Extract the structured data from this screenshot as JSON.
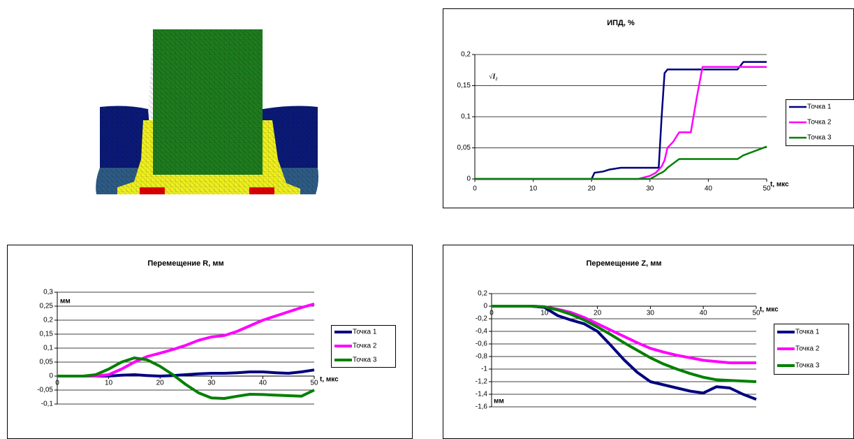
{
  "chart_data": [
    {
      "type": "line",
      "title": "ИПД, %",
      "annotation": "√I₂",
      "x_label": "t, мкс",
      "x": [
        0,
        10,
        20,
        20.5,
        22,
        23,
        25,
        28,
        30,
        31,
        31.5,
        32,
        32.5,
        33,
        34,
        35,
        37,
        38,
        39,
        40,
        44,
        45,
        46,
        48,
        50
      ],
      "xlim": [
        0,
        50
      ],
      "xticks": [
        0,
        10,
        20,
        30,
        40,
        50
      ],
      "ylim": [
        0,
        0.2
      ],
      "yticks": [
        0,
        {
          "value": 0.05,
          "label": "0,05"
        },
        {
          "value": 0.1,
          "label": "0,1"
        },
        {
          "value": 0.15,
          "label": "0,15"
        },
        {
          "value": 0.2,
          "label": "0,2"
        }
      ],
      "grid": true,
      "legend": "right",
      "series": [
        {
          "name": "Точка 1",
          "color": "#000080",
          "values": [
            0,
            0,
            0,
            0.01,
            0.012,
            0.015,
            0.018,
            0.018,
            0.018,
            0.018,
            0.018,
            0.1,
            0.17,
            0.176,
            0.176,
            0.176,
            0.176,
            0.176,
            0.176,
            0.176,
            0.176,
            0.176,
            0.188,
            0.188,
            0.188
          ]
        },
        {
          "name": "Точка 2",
          "color": "#ff00ff",
          "values": [
            0,
            0,
            0,
            0,
            0,
            0,
            0,
            0,
            0.005,
            0.01,
            0.015,
            0.02,
            0.03,
            0.05,
            0.06,
            0.075,
            0.075,
            0.13,
            0.18,
            0.18,
            0.18,
            0.18,
            0.18,
            0.18,
            0.18
          ]
        },
        {
          "name": "Точка 3",
          "color": "#008000",
          "values": [
            0,
            0,
            0,
            0,
            0,
            0,
            0,
            0,
            0,
            0.005,
            0.008,
            0.01,
            0.013,
            0.018,
            0.025,
            0.032,
            0.032,
            0.032,
            0.032,
            0.032,
            0.032,
            0.032,
            0.038,
            0.045,
            0.052
          ]
        }
      ]
    },
    {
      "type": "line",
      "title": "Перемещение R, мм",
      "x_label": "t, мкс",
      "y_label": "мм",
      "x": [
        0,
        2.5,
        5,
        7.5,
        10,
        12.5,
        15,
        17.5,
        20,
        22.5,
        25,
        27.5,
        30,
        32.5,
        35,
        37.5,
        40,
        42.5,
        45,
        47.5,
        50
      ],
      "xlim": [
        0,
        50
      ],
      "xticks": [
        0,
        10,
        20,
        30,
        40,
        50
      ],
      "ylim": [
        -0.1,
        0.3
      ],
      "yticks": [
        {
          "value": -0.1,
          "label": "-0,1"
        },
        {
          "value": -0.05,
          "label": "-0,05"
        },
        0,
        {
          "value": 0.05,
          "label": "0,05"
        },
        {
          "value": 0.1,
          "label": "0,1"
        },
        {
          "value": 0.15,
          "label": "0,15"
        },
        {
          "value": 0.2,
          "label": "0,2"
        },
        {
          "value": 0.25,
          "label": "0,25"
        },
        {
          "value": 0.3,
          "label": "0,3"
        }
      ],
      "grid": true,
      "legend": "right",
      "series": [
        {
          "name": "Точка 1",
          "color": "#000080",
          "values": [
            0,
            0,
            0,
            0,
            0,
            0.003,
            0.005,
            0.002,
            0,
            0.002,
            0.005,
            0.008,
            0.01,
            0.01,
            0.012,
            0.015,
            0.015,
            0.012,
            0.01,
            0.015,
            0.022
          ]
        },
        {
          "name": "Точка 2",
          "color": "#ff00ff",
          "values": [
            0,
            0,
            0,
            0,
            0.005,
            0.025,
            0.05,
            0.07,
            0.082,
            0.095,
            0.11,
            0.128,
            0.14,
            0.145,
            0.16,
            0.18,
            0.2,
            0.215,
            0.23,
            0.245,
            0.258
          ]
        },
        {
          "name": "Точка 3",
          "color": "#008000",
          "values": [
            0,
            0,
            0,
            0.005,
            0.025,
            0.05,
            0.065,
            0.058,
            0.035,
            0.005,
            -0.03,
            -0.06,
            -0.078,
            -0.08,
            -0.072,
            -0.065,
            -0.066,
            -0.068,
            -0.07,
            -0.072,
            -0.05
          ]
        }
      ]
    },
    {
      "type": "line",
      "title": "Перемещение Z, мм",
      "x_label": "t, мкс",
      "y_label": "мм",
      "x": [
        0,
        2.5,
        5,
        7.5,
        10,
        12.5,
        15,
        17.5,
        20,
        22.5,
        25,
        27.5,
        30,
        32.5,
        35,
        37.5,
        40,
        42.5,
        45,
        47.5,
        50
      ],
      "xlim": [
        0,
        50
      ],
      "xticks": [
        0,
        10,
        20,
        30,
        40,
        50
      ],
      "ylim": [
        -1.6,
        0.2
      ],
      "yticks": [
        {
          "value": -1.6,
          "label": "-1,6"
        },
        {
          "value": -1.4,
          "label": "-1,4"
        },
        {
          "value": -1.2,
          "label": "-1,2"
        },
        -1,
        {
          "value": -0.8,
          "label": "-0,8"
        },
        {
          "value": -0.6,
          "label": "-0,6"
        },
        {
          "value": -0.4,
          "label": "-0,4"
        },
        {
          "value": -0.2,
          "label": "-0,2"
        },
        0,
        {
          "value": 0.2,
          "label": "0,2"
        }
      ],
      "grid": true,
      "legend": "right",
      "series": [
        {
          "name": "Точка 1",
          "color": "#000080",
          "values": [
            0,
            0,
            0,
            0,
            -0.02,
            -0.15,
            -0.22,
            -0.28,
            -0.4,
            -0.62,
            -0.85,
            -1.05,
            -1.2,
            -1.25,
            -1.3,
            -1.35,
            -1.38,
            -1.28,
            -1.3,
            -1.4,
            -1.48
          ]
        },
        {
          "name": "Точка 2",
          "color": "#ff00ff",
          "values": [
            0,
            0,
            0,
            0,
            -0.01,
            -0.05,
            -0.1,
            -0.18,
            -0.28,
            -0.38,
            -0.48,
            -0.58,
            -0.67,
            -0.73,
            -0.78,
            -0.82,
            -0.86,
            -0.88,
            -0.9,
            -0.9,
            -0.9
          ]
        },
        {
          "name": "Точка 3",
          "color": "#008000",
          "values": [
            0,
            0,
            0,
            0,
            -0.01,
            -0.06,
            -0.13,
            -0.22,
            -0.33,
            -0.45,
            -0.58,
            -0.7,
            -0.82,
            -0.92,
            -1,
            -1.07,
            -1.13,
            -1.17,
            -1.18,
            -1.19,
            -1.2
          ]
        }
      ]
    }
  ]
}
